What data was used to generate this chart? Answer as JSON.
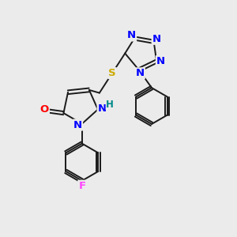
{
  "background_color": "#ebebeb",
  "bond_color": "#1a1a1a",
  "bond_width": 1.4,
  "atom_colors": {
    "N": "#0000ff",
    "O": "#ff0000",
    "S": "#ccaa00",
    "F": "#ff44ff",
    "H": "#008888",
    "C": "#1a1a1a"
  },
  "font_size": 9.5,
  "font_size_h": 8.5,
  "dbo": 0.1
}
